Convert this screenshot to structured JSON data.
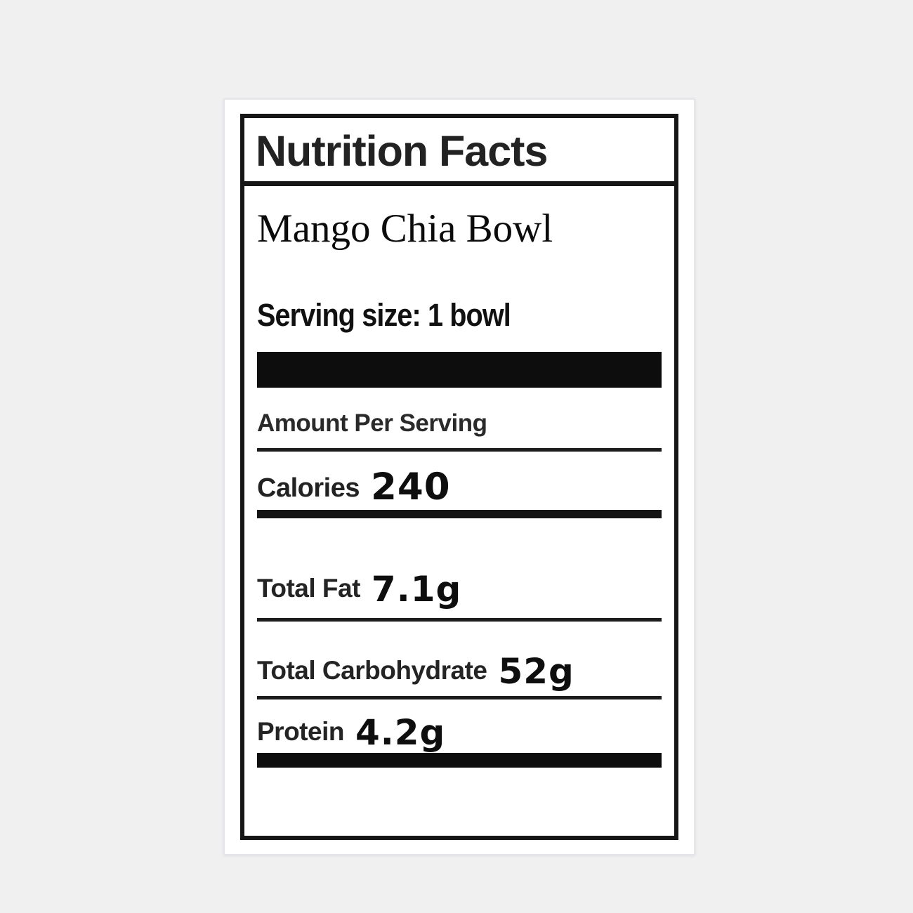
{
  "label": {
    "title": "Nutrition Facts",
    "product_name": "Mango Chia Bowl",
    "serving_size": "Serving size: 1 bowl",
    "amount_per_serving": "Amount Per Serving",
    "calories": {
      "label": "Calories",
      "value": "240"
    },
    "nutrients": [
      {
        "label": "Total Fat",
        "value": "7.1g"
      },
      {
        "label": "Total Carbohydrate",
        "value": "52g"
      },
      {
        "label": "Protein",
        "value": "4.2g"
      }
    ],
    "colors": {
      "ink": "#161616",
      "card_bg": "#ffffff",
      "page_bg": "#f0f0f1"
    }
  }
}
